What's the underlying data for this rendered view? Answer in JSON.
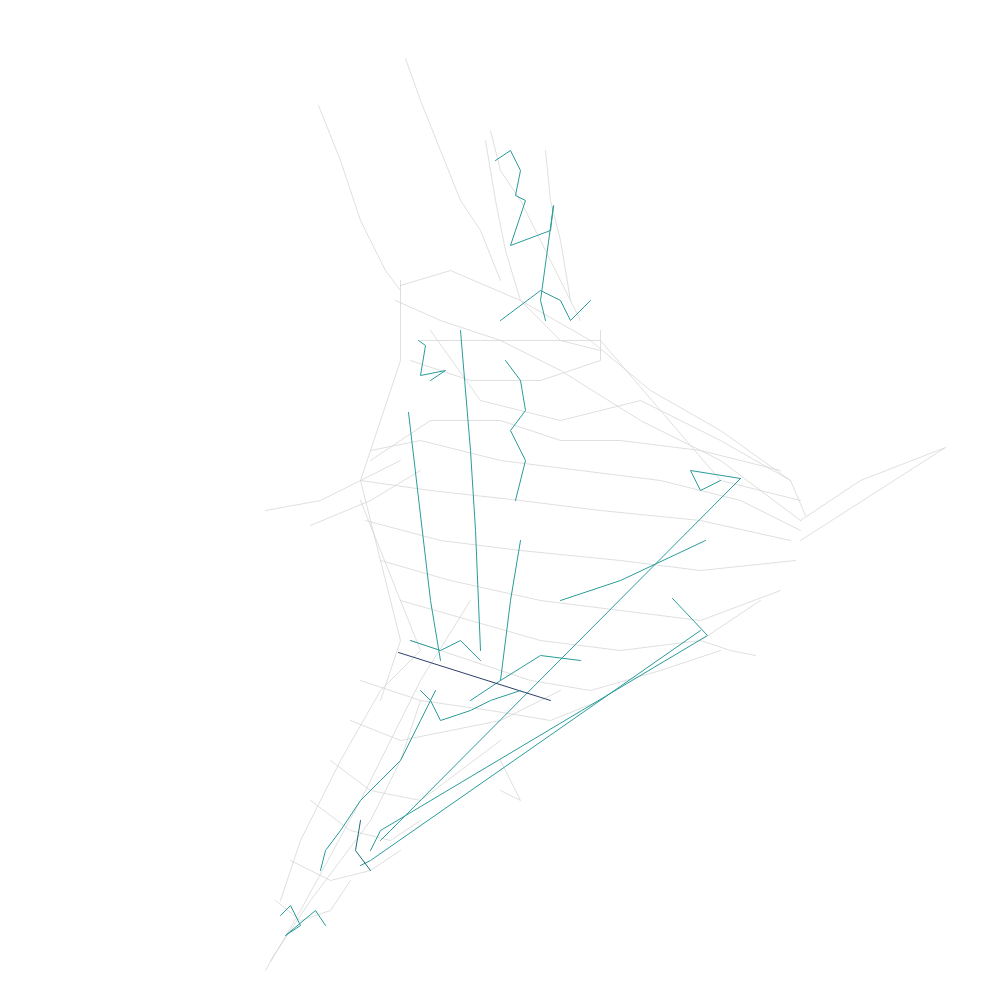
{
  "chart_data": {
    "type": "line",
    "tick_labels": false,
    "grid": false,
    "xlim": [
      0,
      1000
    ],
    "ylim": [
      1000,
      0
    ],
    "series": [
      {
        "color": "#d3d3d3",
        "x": [
          400,
          450,
          520,
          590,
          650,
          720,
          790,
          805
        ],
        "values": [
          285,
          270,
          300,
          340,
          390,
          430,
          480,
          515
        ]
      },
      {
        "color": "#d3d3d3",
        "x": [
          395,
          440,
          500,
          560,
          640,
          720,
          800
        ],
        "values": [
          300,
          320,
          340,
          370,
          420,
          460,
          520
        ]
      },
      {
        "color": "#d3d3d3",
        "x": [
          370,
          420,
          500,
          580,
          660,
          740,
          800
        ],
        "values": [
          450,
          440,
          460,
          470,
          480,
          500,
          530
        ]
      },
      {
        "color": "#d3d3d3",
        "x": [
          360,
          430,
          520,
          600,
          700,
          790
        ],
        "values": [
          480,
          490,
          500,
          510,
          520,
          540
        ]
      },
      {
        "color": "#d3d3d3",
        "x": [
          365,
          440,
          520,
          620,
          700,
          795
        ],
        "values": [
          520,
          540,
          550,
          560,
          570,
          560
        ]
      },
      {
        "color": "#d3d3d3",
        "x": [
          380,
          450,
          540,
          620,
          700,
          780
        ],
        "values": [
          560,
          580,
          600,
          610,
          620,
          590
        ]
      },
      {
        "color": "#d3d3d3",
        "x": [
          400,
          470,
          540,
          620,
          700,
          760
        ],
        "values": [
          600,
          620,
          640,
          650,
          640,
          600
        ]
      },
      {
        "color": "#d3d3d3",
        "x": [
          410,
          470,
          530,
          590,
          660,
          720
        ],
        "values": [
          640,
          660,
          680,
          690,
          670,
          650
        ]
      },
      {
        "color": "#d3d3d3",
        "x": [
          360,
          420,
          490,
          550,
          600
        ],
        "values": [
          680,
          700,
          710,
          720,
          700
        ]
      },
      {
        "color": "#d3d3d3",
        "x": [
          350,
          400,
          450,
          500,
          560
        ],
        "values": [
          720,
          740,
          730,
          720,
          690
        ]
      },
      {
        "color": "#d3d3d3",
        "x": [
          330,
          370,
          420,
          460,
          500
        ],
        "values": [
          760,
          790,
          800,
          770,
          740
        ]
      },
      {
        "color": "#d3d3d3",
        "x": [
          310,
          350,
          390,
          420
        ],
        "values": [
          800,
          830,
          840,
          820
        ]
      },
      {
        "color": "#d3d3d3",
        "x": [
          290,
          330,
          370,
          400
        ],
        "values": [
          860,
          880,
          870,
          850
        ]
      },
      {
        "color": "#d3d3d3",
        "x": [
          275,
          300,
          330,
          350
        ],
        "values": [
          900,
          920,
          910,
          880
        ]
      },
      {
        "color": "#d3d3d3",
        "x": [
          270,
          290,
          310,
          340,
          370,
          400,
          420
        ],
        "values": [
          960,
          930,
          900,
          860,
          820,
          760,
          700
        ]
      },
      {
        "color": "#d3d3d3",
        "x": [
          265,
          300,
          360,
          420,
          470
        ],
        "values": [
          970,
          910,
          800,
          680,
          600
        ]
      },
      {
        "color": "#d3d3d3",
        "x": [
          490,
          500,
          520,
          540,
          560,
          580
        ],
        "values": [
          130,
          170,
          200,
          240,
          280,
          320
        ]
      },
      {
        "color": "#d3d3d3",
        "x": [
          485,
          495,
          505,
          520,
          560,
          600
        ],
        "values": [
          140,
          200,
          250,
          300,
          340,
          350
        ]
      },
      {
        "color": "#d3d3d3",
        "x": [
          545,
          550,
          560,
          570
        ],
        "values": [
          150,
          200,
          240,
          300
        ]
      },
      {
        "color": "#d3d3d3",
        "x": [
          405,
          420,
          440,
          460,
          480,
          500
        ],
        "values": [
          58,
          100,
          150,
          200,
          230,
          280
        ]
      },
      {
        "color": "#d3d3d3",
        "x": [
          318,
          340,
          360,
          385,
          400
        ],
        "values": [
          105,
          160,
          220,
          270,
          290
        ]
      },
      {
        "color": "#d3d3d3",
        "x": [
          400,
          360,
          320,
          265
        ],
        "values": [
          460,
          480,
          500,
          510
        ]
      },
      {
        "color": "#d3d3d3",
        "x": [
          420,
          370,
          310
        ],
        "values": [
          470,
          500,
          525
        ]
      },
      {
        "color": "#d3d3d3",
        "x": [
          800,
          860,
          945,
          800
        ],
        "values": [
          520,
          480,
          447,
          540
        ]
      },
      {
        "color": "#d3d3d3",
        "x": [
          700,
          730,
          755
        ],
        "values": [
          640,
          650,
          655
        ]
      },
      {
        "color": "#d3d3d3",
        "x": [
          400,
          400,
          380,
          360,
          380,
          400,
          380
        ],
        "values": [
          280,
          360,
          420,
          480,
          560,
          640,
          700
        ]
      },
      {
        "color": "#d3d3d3",
        "x": [
          430,
          480,
          560,
          640,
          720,
          790
        ],
        "values": [
          330,
          400,
          420,
          400,
          440,
          480
        ]
      },
      {
        "color": "#d3d3d3",
        "x": [
          410,
          470,
          540,
          600,
          600
        ],
        "values": [
          360,
          380,
          380,
          360,
          330
        ]
      },
      {
        "color": "#d3d3d3",
        "x": [
          500,
          520,
          500
        ],
        "values": [
          760,
          800,
          790
        ]
      },
      {
        "color": "#d3d3d3",
        "x": [
          420,
          600,
          720,
          800
        ],
        "values": [
          340,
          340,
          480,
          500
        ]
      },
      {
        "color": "#d3d3d3",
        "x": [
          360,
          400,
          420,
          380,
          340,
          300,
          280
        ],
        "values": [
          500,
          600,
          650,
          690,
          760,
          840,
          900
        ]
      },
      {
        "color": "#d3d3d3",
        "x": [
          370,
          430,
          500,
          560,
          620,
          700,
          780
        ],
        "values": [
          460,
          420,
          420,
          440,
          440,
          450,
          470
        ]
      },
      {
        "color": "#2a9d9a",
        "x": [
          495,
          510,
          520,
          515,
          525,
          510,
          550,
          553,
          540,
          545
        ],
        "values": [
          160,
          150,
          170,
          195,
          200,
          245,
          230,
          205,
          300,
          320
        ]
      },
      {
        "color": "#2a9d9a",
        "x": [
          418,
          425,
          420,
          445,
          430
        ],
        "values": [
          340,
          345,
          375,
          370,
          380
        ]
      },
      {
        "color": "#2a9d9a",
        "x": [
          408,
          430,
          440
        ],
        "values": [
          412,
          600,
          660
        ]
      },
      {
        "color": "#2a9d9a",
        "x": [
          460,
          470,
          475,
          480
        ],
        "values": [
          330,
          450,
          530,
          650
        ]
      },
      {
        "color": "#2a9d9a",
        "x": [
          520,
          510,
          500
        ],
        "values": [
          540,
          600,
          680
        ]
      },
      {
        "color": "#2a9d9a",
        "x": [
          740,
          690,
          700,
          720
        ],
        "values": [
          478,
          470,
          490,
          480
        ]
      },
      {
        "color": "#2a9d9a",
        "x": [
          740,
          390,
          380
        ],
        "values": [
          478,
          830,
          840
        ]
      },
      {
        "color": "#2a9d9a",
        "x": [
          705,
          620,
          560
        ],
        "values": [
          540,
          580,
          600
        ]
      },
      {
        "color": "#2a9d9a",
        "x": [
          672,
          707,
          380,
          370
        ],
        "values": [
          598,
          635,
          830,
          850
        ]
      },
      {
        "color": "#2a9d9a",
        "x": [
          700,
          370,
          360
        ],
        "values": [
          630,
          860,
          865
        ]
      },
      {
        "color": "#2a9d9a",
        "x": [
          435,
          420,
          400,
          380,
          360,
          340,
          325,
          320
        ],
        "values": [
          690,
          720,
          760,
          780,
          800,
          830,
          850,
          870
        ]
      },
      {
        "color": "#2a9d9a",
        "x": [
          580,
          540,
          500,
          470
        ],
        "values": [
          660,
          655,
          680,
          700
        ]
      },
      {
        "color": "#2d3e6b",
        "x": [
          398,
          550
        ],
        "values": [
          652,
          700
        ]
      },
      {
        "color": "#2a9d9a",
        "x": [
          280,
          290,
          300,
          285,
          315,
          325
        ],
        "values": [
          915,
          905,
          925,
          935,
          910,
          925
        ]
      },
      {
        "color": "#2a9d9a",
        "x": [
          410,
          440,
          460,
          480
        ],
        "values": [
          640,
          650,
          640,
          660
        ]
      },
      {
        "color": "#2a9d9a",
        "x": [
          420,
          430,
          440,
          470,
          490,
          520
        ],
        "values": [
          690,
          700,
          720,
          710,
          700,
          690
        ]
      },
      {
        "color": "#2a9d9a",
        "x": [
          505,
          520,
          525,
          510,
          525,
          515
        ],
        "values": [
          360,
          380,
          410,
          430,
          460,
          500
        ]
      },
      {
        "color": "#2a9d9a",
        "x": [
          590,
          570,
          560,
          540,
          500
        ],
        "values": [
          300,
          320,
          300,
          290,
          320
        ]
      },
      {
        "color": "#1e6f78",
        "x": [
          360,
          355,
          370
        ],
        "values": [
          820,
          850,
          870
        ]
      }
    ]
  }
}
